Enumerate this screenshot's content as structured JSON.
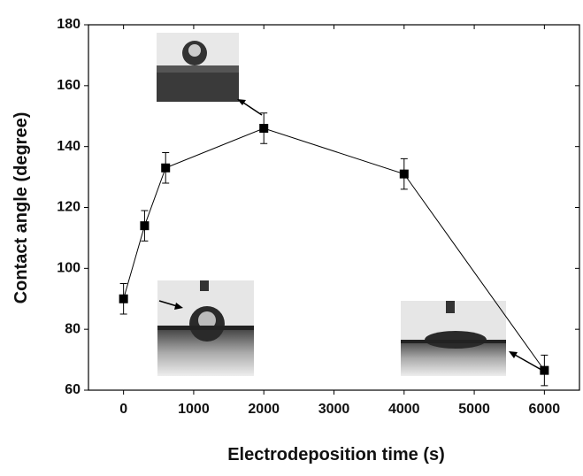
{
  "chart_data": {
    "type": "line",
    "x_label": "Electrodeposition time (s)",
    "y_label": "Contact angle (degree)",
    "x": [
      0,
      300,
      600,
      2000,
      4000,
      6000
    ],
    "series": [
      {
        "color": "#000000",
        "values": [
          90,
          114,
          133,
          146,
          131,
          66.5
        ],
        "errors": [
          5,
          5,
          5,
          5,
          5,
          5
        ]
      }
    ],
    "xlim": [
      -500,
      6500
    ],
    "ylim": [
      60,
      180
    ],
    "xticks": [
      0,
      1000,
      2000,
      3000,
      4000,
      5000,
      6000
    ],
    "yticks": [
      60,
      80,
      100,
      120,
      140,
      160,
      180
    ]
  }
}
